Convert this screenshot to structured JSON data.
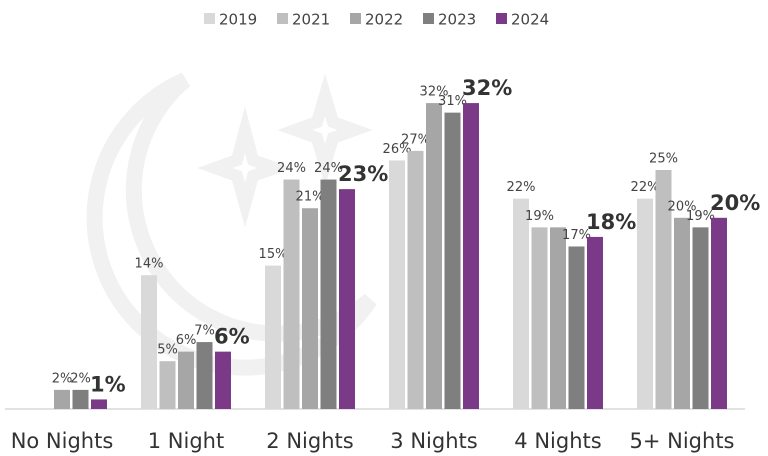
{
  "chart_data": {
    "type": "bar",
    "categories": [
      "No Nights",
      "1 Night",
      "2 Nights",
      "3 Nights",
      "4 Nights",
      "5+ Nights"
    ],
    "series": [
      {
        "name": "2019",
        "color": "#d9d9d9",
        "values": [
          null,
          14,
          15,
          26,
          22,
          22
        ]
      },
      {
        "name": "2021",
        "color": "#bfbfbf",
        "values": [
          null,
          5,
          24,
          27,
          19,
          25
        ]
      },
      {
        "name": "2022",
        "color": "#a6a6a6",
        "values": [
          2,
          6,
          21,
          32,
          19,
          20
        ]
      },
      {
        "name": "2023",
        "color": "#7f7f7f",
        "values": [
          2,
          7,
          24,
          31,
          17,
          19
        ]
      },
      {
        "name": "2024",
        "color": "#7b3a87",
        "values": [
          1,
          6,
          23,
          32,
          18,
          20
        ]
      }
    ],
    "value_labels": [
      [
        null,
        "14%",
        "15%",
        "26%",
        "22%",
        "22%"
      ],
      [
        null,
        "5%",
        "24%",
        "27%",
        "19%",
        "25%"
      ],
      [
        "2%",
        "6%",
        "21%",
        "32%",
        null,
        "20%"
      ],
      [
        "2%",
        "7%",
        "24%",
        "31%",
        "17%",
        "19%"
      ],
      [
        "1%",
        "6%",
        "23%",
        "32%",
        "18%",
        "20%"
      ]
    ],
    "legend": "top"
  }
}
